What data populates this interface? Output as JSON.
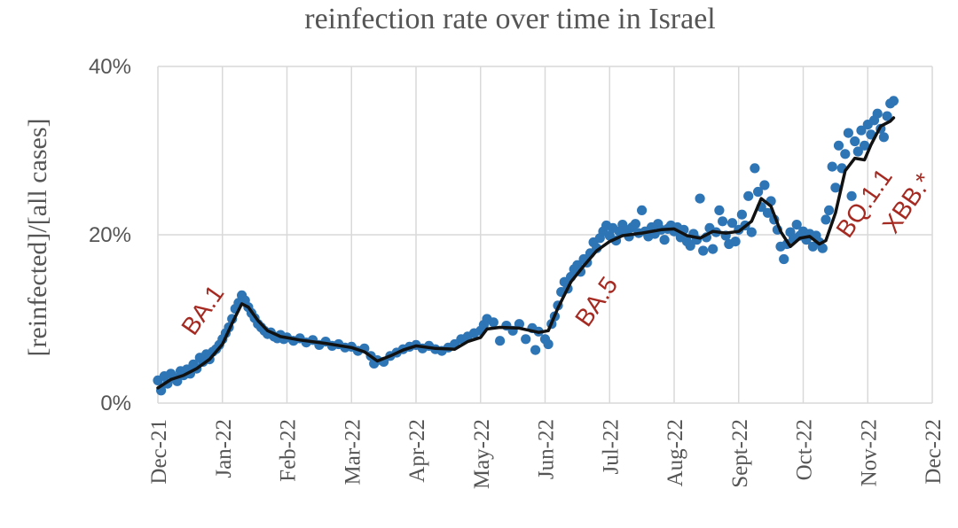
{
  "chart_data": {
    "type": "scatter",
    "title": "reinfection rate over time in Israel",
    "ylabel": "[reinfected]/[all cases]",
    "xlabel": "",
    "x_tick_labels": [
      "Dec-21",
      "Jan-22",
      "Feb-22",
      "Mar-22",
      "Apr-22",
      "May-22",
      "Jun-22",
      "Jul-22",
      "Aug-22",
      "Sept-22",
      "Oct-22",
      "Nov-22",
      "Dec-22"
    ],
    "y_tick_labels": [
      "0%",
      "20%",
      "40%"
    ],
    "ylim": [
      0,
      40
    ],
    "grid": true,
    "series": [
      {
        "kind": "points",
        "color": "#2e75b6",
        "points": [
          [
            0.0,
            2.7
          ],
          [
            0.05,
            1.5
          ],
          [
            0.1,
            3.2
          ],
          [
            0.15,
            2.3
          ],
          [
            0.2,
            3.5
          ],
          [
            0.25,
            3.0
          ],
          [
            0.3,
            2.6
          ],
          [
            0.35,
            3.8
          ],
          [
            0.4,
            3.3
          ],
          [
            0.45,
            4.0
          ],
          [
            0.5,
            3.5
          ],
          [
            0.55,
            4.6
          ],
          [
            0.6,
            4.1
          ],
          [
            0.65,
            5.4
          ],
          [
            0.7,
            4.9
          ],
          [
            0.75,
            5.8
          ],
          [
            0.8,
            5.2
          ],
          [
            0.85,
            6.1
          ],
          [
            0.9,
            6.4
          ],
          [
            0.95,
            6.9
          ],
          [
            1.0,
            7.6
          ],
          [
            1.05,
            8.3
          ],
          [
            1.1,
            9.0
          ],
          [
            1.15,
            10.0
          ],
          [
            1.2,
            11.2
          ],
          [
            1.25,
            11.9
          ],
          [
            1.3,
            12.8
          ],
          [
            1.35,
            12.2
          ],
          [
            1.4,
            11.4
          ],
          [
            1.45,
            10.7
          ],
          [
            1.5,
            10.1
          ],
          [
            1.55,
            9.4
          ],
          [
            1.6,
            9.0
          ],
          [
            1.65,
            8.6
          ],
          [
            1.7,
            8.2
          ],
          [
            1.75,
            8.4
          ],
          [
            1.8,
            7.9
          ],
          [
            1.85,
            7.7
          ],
          [
            1.9,
            8.1
          ],
          [
            1.95,
            7.6
          ],
          [
            2.0,
            7.8
          ],
          [
            2.1,
            7.4
          ],
          [
            2.2,
            7.7
          ],
          [
            2.3,
            7.2
          ],
          [
            2.4,
            7.5
          ],
          [
            2.5,
            6.9
          ],
          [
            2.6,
            7.3
          ],
          [
            2.7,
            6.8
          ],
          [
            2.8,
            7.0
          ],
          [
            2.9,
            6.6
          ],
          [
            3.0,
            6.7
          ],
          [
            3.1,
            6.2
          ],
          [
            3.2,
            6.5
          ],
          [
            3.3,
            5.6
          ],
          [
            3.35,
            4.7
          ],
          [
            3.4,
            5.1
          ],
          [
            3.5,
            4.9
          ],
          [
            3.6,
            5.6
          ],
          [
            3.7,
            6.0
          ],
          [
            3.8,
            6.4
          ],
          [
            3.9,
            6.7
          ],
          [
            4.0,
            6.9
          ],
          [
            4.1,
            6.5
          ],
          [
            4.2,
            6.8
          ],
          [
            4.3,
            6.4
          ],
          [
            4.4,
            6.2
          ],
          [
            4.5,
            6.6
          ],
          [
            4.6,
            7.0
          ],
          [
            4.7,
            7.6
          ],
          [
            4.8,
            7.9
          ],
          [
            4.9,
            8.3
          ],
          [
            5.0,
            8.6
          ],
          [
            5.05,
            9.3
          ],
          [
            5.1,
            10.0
          ],
          [
            5.2,
            9.6
          ],
          [
            5.3,
            7.4
          ],
          [
            5.4,
            9.2
          ],
          [
            5.5,
            8.6
          ],
          [
            5.6,
            9.4
          ],
          [
            5.7,
            7.6
          ],
          [
            5.8,
            8.9
          ],
          [
            5.85,
            6.3
          ],
          [
            5.9,
            8.5
          ],
          [
            6.0,
            7.6
          ],
          [
            6.05,
            7.0
          ],
          [
            6.1,
            9.4
          ],
          [
            6.15,
            10.3
          ],
          [
            6.2,
            11.6
          ],
          [
            6.25,
            13.2
          ],
          [
            6.3,
            14.4
          ],
          [
            6.35,
            13.6
          ],
          [
            6.4,
            15.0
          ],
          [
            6.45,
            15.9
          ],
          [
            6.5,
            16.4
          ],
          [
            6.55,
            15.6
          ],
          [
            6.6,
            17.1
          ],
          [
            6.65,
            16.7
          ],
          [
            6.7,
            17.8
          ],
          [
            6.75,
            19.1
          ],
          [
            6.8,
            18.4
          ],
          [
            6.85,
            19.6
          ],
          [
            6.9,
            20.4
          ],
          [
            6.95,
            21.1
          ],
          [
            7.0,
            19.9
          ],
          [
            7.05,
            20.8
          ],
          [
            7.1,
            19.3
          ],
          [
            7.15,
            20.4
          ],
          [
            7.2,
            21.2
          ],
          [
            7.25,
            20.6
          ],
          [
            7.3,
            19.8
          ],
          [
            7.35,
            20.9
          ],
          [
            7.4,
            21.3
          ],
          [
            7.45,
            20.2
          ],
          [
            7.5,
            22.9
          ],
          [
            7.55,
            20.4
          ],
          [
            7.6,
            19.8
          ],
          [
            7.65,
            20.9
          ],
          [
            7.7,
            20.1
          ],
          [
            7.75,
            21.3
          ],
          [
            7.8,
            20.6
          ],
          [
            7.85,
            19.4
          ],
          [
            7.9,
            20.7
          ],
          [
            7.95,
            21.1
          ],
          [
            8.0,
            20.4
          ],
          [
            8.05,
            20.9
          ],
          [
            8.1,
            19.7
          ],
          [
            8.15,
            20.6
          ],
          [
            8.2,
            19.2
          ],
          [
            8.25,
            18.7
          ],
          [
            8.3,
            20.1
          ],
          [
            8.35,
            19.4
          ],
          [
            8.4,
            24.3
          ],
          [
            8.45,
            18.1
          ],
          [
            8.5,
            19.7
          ],
          [
            8.55,
            20.8
          ],
          [
            8.6,
            18.3
          ],
          [
            8.65,
            20.3
          ],
          [
            8.7,
            22.9
          ],
          [
            8.75,
            21.6
          ],
          [
            8.8,
            19.9
          ],
          [
            8.85,
            18.9
          ],
          [
            8.9,
            21.4
          ],
          [
            8.95,
            19.2
          ],
          [
            9.0,
            20.6
          ],
          [
            9.05,
            22.4
          ],
          [
            9.1,
            21.1
          ],
          [
            9.15,
            24.6
          ],
          [
            9.2,
            20.3
          ],
          [
            9.25,
            27.9
          ],
          [
            9.3,
            25.1
          ],
          [
            9.35,
            23.3
          ],
          [
            9.4,
            25.9
          ],
          [
            9.45,
            22.6
          ],
          [
            9.5,
            24.0
          ],
          [
            9.55,
            21.8
          ],
          [
            9.6,
            20.6
          ],
          [
            9.65,
            18.6
          ],
          [
            9.7,
            17.1
          ],
          [
            9.75,
            18.9
          ],
          [
            9.8,
            20.3
          ],
          [
            9.85,
            19.6
          ],
          [
            9.9,
            21.2
          ],
          [
            9.95,
            19.9
          ],
          [
            10.0,
            20.4
          ],
          [
            10.05,
            19.4
          ],
          [
            10.1,
            20.1
          ],
          [
            10.15,
            18.6
          ],
          [
            10.2,
            19.9
          ],
          [
            10.25,
            19.1
          ],
          [
            10.3,
            18.4
          ],
          [
            10.35,
            21.8
          ],
          [
            10.4,
            22.9
          ],
          [
            10.45,
            28.1
          ],
          [
            10.5,
            25.6
          ],
          [
            10.55,
            30.6
          ],
          [
            10.6,
            27.9
          ],
          [
            10.65,
            29.6
          ],
          [
            10.7,
            32.1
          ],
          [
            10.75,
            24.6
          ],
          [
            10.8,
            31.1
          ],
          [
            10.85,
            29.9
          ],
          [
            10.9,
            32.4
          ],
          [
            10.95,
            30.6
          ],
          [
            11.0,
            33.1
          ],
          [
            11.05,
            31.9
          ],
          [
            11.1,
            33.6
          ],
          [
            11.15,
            34.4
          ],
          [
            11.2,
            32.6
          ],
          [
            11.25,
            31.6
          ],
          [
            11.3,
            34.1
          ],
          [
            11.35,
            35.6
          ],
          [
            11.4,
            35.9
          ]
        ]
      },
      {
        "kind": "trend",
        "color": "#111111",
        "points": [
          [
            0.0,
            1.8
          ],
          [
            0.2,
            2.8
          ],
          [
            0.4,
            3.3
          ],
          [
            0.6,
            4.1
          ],
          [
            0.8,
            5.2
          ],
          [
            1.0,
            7.0
          ],
          [
            1.15,
            9.5
          ],
          [
            1.3,
            11.8
          ],
          [
            1.4,
            11.4
          ],
          [
            1.55,
            9.8
          ],
          [
            1.7,
            8.6
          ],
          [
            1.9,
            7.9
          ],
          [
            2.2,
            7.5
          ],
          [
            2.6,
            7.1
          ],
          [
            3.0,
            6.6
          ],
          [
            3.2,
            6.1
          ],
          [
            3.4,
            5.0
          ],
          [
            3.6,
            5.6
          ],
          [
            3.8,
            6.3
          ],
          [
            4.0,
            6.8
          ],
          [
            4.3,
            6.5
          ],
          [
            4.6,
            6.4
          ],
          [
            4.8,
            7.3
          ],
          [
            5.0,
            7.8
          ],
          [
            5.1,
            8.8
          ],
          [
            5.3,
            9.0
          ],
          [
            5.6,
            8.9
          ],
          [
            5.9,
            8.4
          ],
          [
            6.05,
            8.6
          ],
          [
            6.2,
            11.3
          ],
          [
            6.4,
            14.4
          ],
          [
            6.6,
            16.3
          ],
          [
            6.8,
            18.1
          ],
          [
            7.0,
            19.2
          ],
          [
            7.2,
            19.9
          ],
          [
            7.5,
            20.2
          ],
          [
            7.8,
            20.6
          ],
          [
            8.0,
            20.7
          ],
          [
            8.2,
            19.9
          ],
          [
            8.4,
            19.6
          ],
          [
            8.6,
            20.4
          ],
          [
            8.8,
            20.2
          ],
          [
            9.0,
            20.4
          ],
          [
            9.2,
            21.6
          ],
          [
            9.35,
            24.3
          ],
          [
            9.5,
            23.4
          ],
          [
            9.65,
            20.4
          ],
          [
            9.8,
            18.6
          ],
          [
            9.95,
            19.6
          ],
          [
            10.1,
            19.8
          ],
          [
            10.25,
            18.9
          ],
          [
            10.35,
            19.3
          ],
          [
            10.5,
            22.6
          ],
          [
            10.65,
            27.6
          ],
          [
            10.8,
            29.1
          ],
          [
            10.95,
            28.9
          ],
          [
            11.05,
            30.7
          ],
          [
            11.2,
            32.9
          ],
          [
            11.35,
            33.5
          ],
          [
            11.4,
            33.9
          ]
        ]
      }
    ],
    "annotations": [
      {
        "label": "BA.1",
        "x": 0.8,
        "y": 10.5
      },
      {
        "label": "BA.5",
        "x": 6.9,
        "y": 11.5
      },
      {
        "label": "BQ.1.1",
        "x": 11.05,
        "y": 23.2
      },
      {
        "label": "XBB.*",
        "x": 11.72,
        "y": 23.2
      }
    ]
  }
}
